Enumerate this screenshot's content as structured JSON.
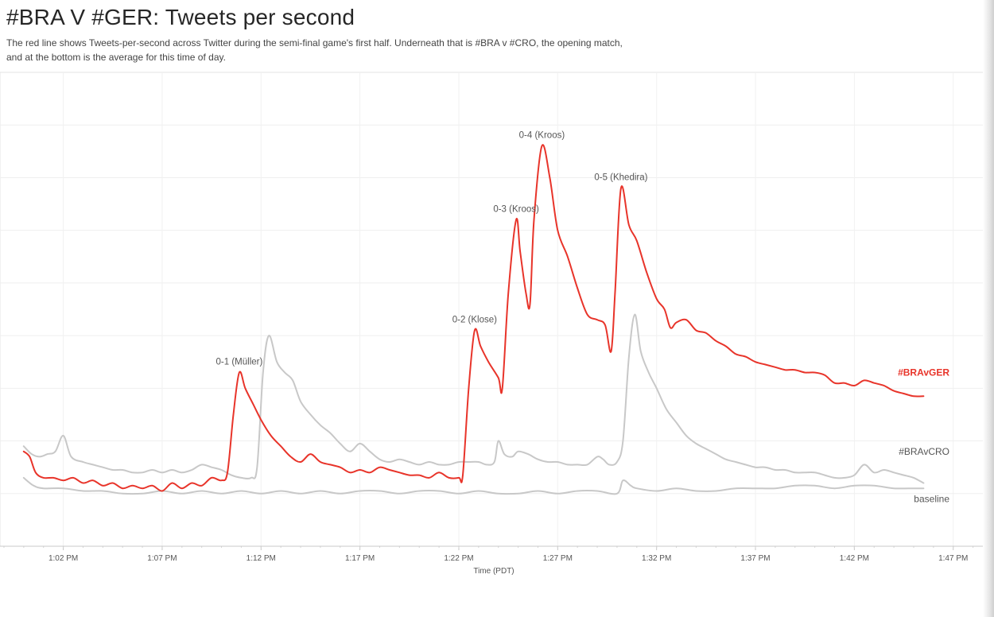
{
  "chart_data": {
    "type": "line",
    "title": "#BRA V #GER: Tweets per second",
    "subtitle_lines": [
      "The red line shows Tweets-per-second across Twitter during the semi-final game's first half. Underneath that is #BRA v #CRO, the opening match,",
      "and at the bottom is the average for this time of day."
    ],
    "xlabel": "Time (PDT)",
    "x_unit": "minutes after 1:00 PM PDT",
    "xlim": [
      -1.2,
      48.7
    ],
    "ylim": [
      0,
      9
    ],
    "y_ticks_labeled": false,
    "x_ticks": [
      {
        "x": 2,
        "label": "1:02 PM"
      },
      {
        "x": 7,
        "label": "1:07 PM"
      },
      {
        "x": 12,
        "label": "1:12 PM"
      },
      {
        "x": 17,
        "label": "1:17 PM"
      },
      {
        "x": 22,
        "label": "1:22 PM"
      },
      {
        "x": 27,
        "label": "1:27 PM"
      },
      {
        "x": 32,
        "label": "1:32 PM"
      },
      {
        "x": 37,
        "label": "1:37 PM"
      },
      {
        "x": 42,
        "label": "1:42 PM"
      },
      {
        "x": 47,
        "label": "1:47 PM"
      }
    ],
    "grid": true,
    "legend": "inline labels at right end of each line",
    "series": [
      {
        "name": "#BRAvGER",
        "color": "#e8342a",
        "points": [
          [
            0,
            1.8
          ],
          [
            0.3,
            1.7
          ],
          [
            0.6,
            1.4
          ],
          [
            1,
            1.3
          ],
          [
            1.5,
            1.3
          ],
          [
            2,
            1.25
          ],
          [
            2.5,
            1.3
          ],
          [
            3,
            1.2
          ],
          [
            3.5,
            1.25
          ],
          [
            4,
            1.15
          ],
          [
            4.5,
            1.2
          ],
          [
            5,
            1.1
          ],
          [
            5.5,
            1.15
          ],
          [
            6,
            1.1
          ],
          [
            6.5,
            1.15
          ],
          [
            7,
            1.05
          ],
          [
            7.5,
            1.2
          ],
          [
            8,
            1.1
          ],
          [
            8.5,
            1.2
          ],
          [
            9,
            1.15
          ],
          [
            9.5,
            1.3
          ],
          [
            10,
            1.25
          ],
          [
            10.3,
            1.4
          ],
          [
            10.6,
            2.5
          ],
          [
            10.9,
            3.3
          ],
          [
            11.2,
            3.0
          ],
          [
            11.6,
            2.7
          ],
          [
            12,
            2.4
          ],
          [
            12.5,
            2.1
          ],
          [
            13,
            1.9
          ],
          [
            13.5,
            1.7
          ],
          [
            14,
            1.6
          ],
          [
            14.5,
            1.75
          ],
          [
            15,
            1.6
          ],
          [
            15.5,
            1.55
          ],
          [
            16,
            1.5
          ],
          [
            16.5,
            1.4
          ],
          [
            17,
            1.45
          ],
          [
            17.5,
            1.4
          ],
          [
            18,
            1.5
          ],
          [
            18.5,
            1.45
          ],
          [
            19,
            1.4
          ],
          [
            19.5,
            1.35
          ],
          [
            20,
            1.35
          ],
          [
            20.5,
            1.3
          ],
          [
            21,
            1.4
          ],
          [
            21.5,
            1.3
          ],
          [
            22,
            1.3
          ],
          [
            22.2,
            1.35
          ],
          [
            22.5,
            3.0
          ],
          [
            22.8,
            4.1
          ],
          [
            23.1,
            3.8
          ],
          [
            23.5,
            3.5
          ],
          [
            24,
            3.2
          ],
          [
            24.2,
            3.0
          ],
          [
            24.5,
            4.8
          ],
          [
            24.9,
            6.2
          ],
          [
            25.1,
            5.6
          ],
          [
            25.4,
            4.8
          ],
          [
            25.6,
            4.6
          ],
          [
            25.8,
            6.2
          ],
          [
            26.2,
            7.6
          ],
          [
            26.6,
            7.0
          ],
          [
            27,
            6.0
          ],
          [
            27.5,
            5.5
          ],
          [
            28,
            4.9
          ],
          [
            28.5,
            4.4
          ],
          [
            29,
            4.3
          ],
          [
            29.4,
            4.2
          ],
          [
            29.7,
            3.7
          ],
          [
            29.9,
            4.8
          ],
          [
            30.2,
            6.8
          ],
          [
            30.6,
            6.1
          ],
          [
            31,
            5.8
          ],
          [
            31.5,
            5.2
          ],
          [
            32,
            4.7
          ],
          [
            32.4,
            4.5
          ],
          [
            32.7,
            4.15
          ],
          [
            33,
            4.25
          ],
          [
            33.5,
            4.3
          ],
          [
            34,
            4.1
          ],
          [
            34.5,
            4.05
          ],
          [
            35,
            3.9
          ],
          [
            35.5,
            3.8
          ],
          [
            36,
            3.65
          ],
          [
            36.5,
            3.6
          ],
          [
            37,
            3.5
          ],
          [
            37.5,
            3.45
          ],
          [
            38,
            3.4
          ],
          [
            38.5,
            3.35
          ],
          [
            39,
            3.35
          ],
          [
            39.5,
            3.3
          ],
          [
            40,
            3.3
          ],
          [
            40.5,
            3.25
          ],
          [
            41,
            3.1
          ],
          [
            41.5,
            3.1
          ],
          [
            42,
            3.05
          ],
          [
            42.5,
            3.15
          ],
          [
            43,
            3.1
          ],
          [
            43.5,
            3.05
          ],
          [
            44,
            2.95
          ],
          [
            44.5,
            2.9
          ],
          [
            45,
            2.85
          ],
          [
            45.5,
            2.85
          ]
        ]
      },
      {
        "name": "#BRAvCRO",
        "color": "#c8c8c8",
        "points": [
          [
            0,
            1.9
          ],
          [
            0.4,
            1.75
          ],
          [
            0.8,
            1.7
          ],
          [
            1.2,
            1.75
          ],
          [
            1.6,
            1.8
          ],
          [
            2,
            2.1
          ],
          [
            2.4,
            1.7
          ],
          [
            3,
            1.6
          ],
          [
            3.5,
            1.55
          ],
          [
            4,
            1.5
          ],
          [
            4.5,
            1.45
          ],
          [
            5,
            1.45
          ],
          [
            5.5,
            1.4
          ],
          [
            6,
            1.4
          ],
          [
            6.5,
            1.45
          ],
          [
            7,
            1.4
          ],
          [
            7.5,
            1.45
          ],
          [
            8,
            1.4
          ],
          [
            8.5,
            1.45
          ],
          [
            9,
            1.55
          ],
          [
            9.5,
            1.5
          ],
          [
            10,
            1.45
          ],
          [
            10.5,
            1.35
          ],
          [
            11,
            1.3
          ],
          [
            11.5,
            1.3
          ],
          [
            11.8,
            1.5
          ],
          [
            12.1,
            3.3
          ],
          [
            12.4,
            4.0
          ],
          [
            12.8,
            3.5
          ],
          [
            13.2,
            3.3
          ],
          [
            13.6,
            3.15
          ],
          [
            14,
            2.75
          ],
          [
            14.5,
            2.5
          ],
          [
            15,
            2.3
          ],
          [
            15.5,
            2.15
          ],
          [
            16,
            1.95
          ],
          [
            16.5,
            1.8
          ],
          [
            17,
            1.95
          ],
          [
            17.5,
            1.8
          ],
          [
            18,
            1.65
          ],
          [
            18.5,
            1.6
          ],
          [
            19,
            1.65
          ],
          [
            19.5,
            1.6
          ],
          [
            20,
            1.55
          ],
          [
            20.5,
            1.6
          ],
          [
            21,
            1.55
          ],
          [
            21.5,
            1.55
          ],
          [
            22,
            1.6
          ],
          [
            22.5,
            1.6
          ],
          [
            23,
            1.6
          ],
          [
            23.4,
            1.55
          ],
          [
            23.8,
            1.6
          ],
          [
            24,
            2.0
          ],
          [
            24.3,
            1.75
          ],
          [
            24.7,
            1.7
          ],
          [
            25,
            1.8
          ],
          [
            25.5,
            1.75
          ],
          [
            26,
            1.65
          ],
          [
            26.5,
            1.6
          ],
          [
            27,
            1.6
          ],
          [
            27.5,
            1.55
          ],
          [
            28,
            1.55
          ],
          [
            28.5,
            1.55
          ],
          [
            29,
            1.7
          ],
          [
            29.3,
            1.65
          ],
          [
            29.6,
            1.55
          ],
          [
            30,
            1.6
          ],
          [
            30.3,
            2.0
          ],
          [
            30.6,
            3.6
          ],
          [
            30.9,
            4.4
          ],
          [
            31.2,
            3.7
          ],
          [
            31.6,
            3.3
          ],
          [
            32,
            3.0
          ],
          [
            32.5,
            2.6
          ],
          [
            33,
            2.35
          ],
          [
            33.5,
            2.1
          ],
          [
            34,
            1.95
          ],
          [
            34.5,
            1.85
          ],
          [
            35,
            1.75
          ],
          [
            35.5,
            1.65
          ],
          [
            36,
            1.6
          ],
          [
            36.5,
            1.55
          ],
          [
            37,
            1.5
          ],
          [
            37.5,
            1.5
          ],
          [
            38,
            1.45
          ],
          [
            38.5,
            1.45
          ],
          [
            39,
            1.4
          ],
          [
            39.5,
            1.4
          ],
          [
            40,
            1.4
          ],
          [
            40.5,
            1.35
          ],
          [
            41,
            1.3
          ],
          [
            41.5,
            1.3
          ],
          [
            42,
            1.35
          ],
          [
            42.5,
            1.55
          ],
          [
            43,
            1.4
          ],
          [
            43.5,
            1.45
          ],
          [
            44,
            1.4
          ],
          [
            44.5,
            1.35
          ],
          [
            45,
            1.3
          ],
          [
            45.5,
            1.2
          ]
        ]
      },
      {
        "name": "baseline",
        "color": "#c8c8c8",
        "points": [
          [
            0,
            1.3
          ],
          [
            0.5,
            1.15
          ],
          [
            1,
            1.1
          ],
          [
            2,
            1.1
          ],
          [
            3,
            1.05
          ],
          [
            4,
            1.05
          ],
          [
            5,
            1.0
          ],
          [
            6,
            1.0
          ],
          [
            7,
            1.05
          ],
          [
            8,
            1.0
          ],
          [
            9,
            1.05
          ],
          [
            10,
            1.0
          ],
          [
            11,
            1.05
          ],
          [
            12,
            1.0
          ],
          [
            13,
            1.05
          ],
          [
            14,
            1.0
          ],
          [
            15,
            1.05
          ],
          [
            16,
            1.0
          ],
          [
            17,
            1.05
          ],
          [
            18,
            1.05
          ],
          [
            19,
            1.0
          ],
          [
            20,
            1.05
          ],
          [
            21,
            1.05
          ],
          [
            22,
            1.0
          ],
          [
            23,
            1.05
          ],
          [
            24,
            1.0
          ],
          [
            25,
            1.0
          ],
          [
            26,
            1.05
          ],
          [
            27,
            1.0
          ],
          [
            28,
            1.05
          ],
          [
            29,
            1.05
          ],
          [
            30,
            1.0
          ],
          [
            30.3,
            1.25
          ],
          [
            30.7,
            1.15
          ],
          [
            31,
            1.1
          ],
          [
            32,
            1.05
          ],
          [
            33,
            1.1
          ],
          [
            34,
            1.05
          ],
          [
            35,
            1.05
          ],
          [
            36,
            1.1
          ],
          [
            37,
            1.1
          ],
          [
            38,
            1.1
          ],
          [
            39,
            1.15
          ],
          [
            40,
            1.15
          ],
          [
            41,
            1.1
          ],
          [
            42,
            1.15
          ],
          [
            43,
            1.15
          ],
          [
            44,
            1.1
          ],
          [
            45,
            1.1
          ],
          [
            45.5,
            1.1
          ]
        ]
      }
    ],
    "annotations": [
      {
        "text": "0-1 (Müller)",
        "x": 10.9,
        "y": 3.3
      },
      {
        "text": "0-2 (Klose)",
        "x": 22.8,
        "y": 4.1
      },
      {
        "text": "0-3 (Kroos)",
        "x": 24.9,
        "y": 6.2
      },
      {
        "text": "0-4 (Kroos)",
        "x": 26.2,
        "y": 7.6
      },
      {
        "text": "0-5 (Khedira)",
        "x": 30.2,
        "y": 6.8
      }
    ],
    "series_labels": [
      {
        "text": "#BRAvGER",
        "series": "#BRAvGER",
        "y": 3.3
      },
      {
        "text": "#BRAvCRO",
        "series": "#BRAvCRO",
        "y": 1.8
      },
      {
        "text": "baseline",
        "series": "baseline",
        "y": 0.9
      }
    ]
  }
}
